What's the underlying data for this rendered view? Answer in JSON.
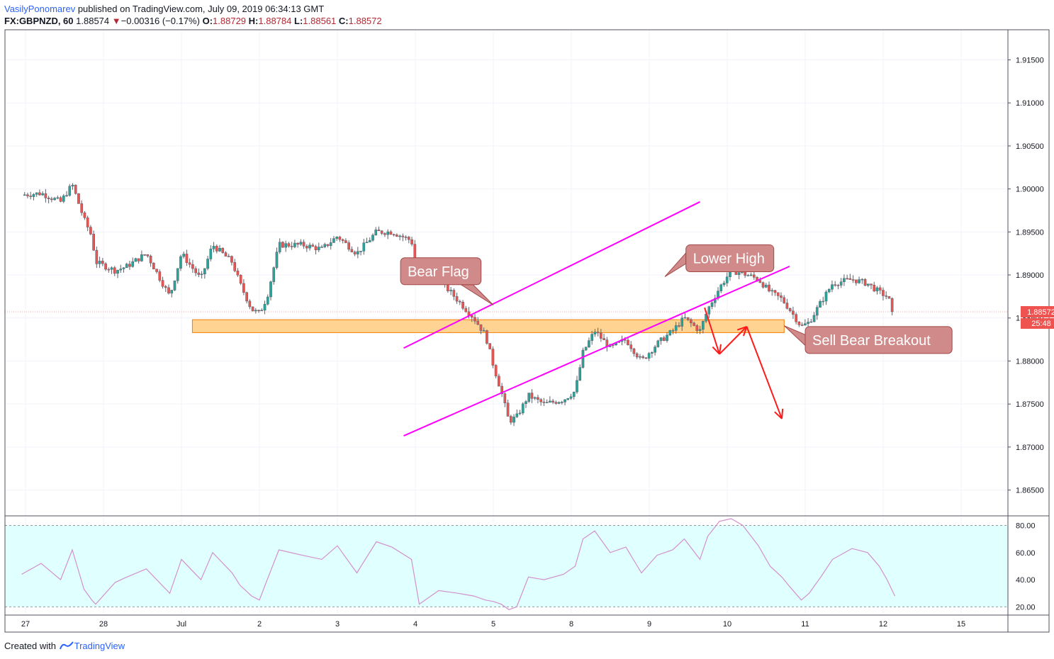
{
  "header": {
    "author": "VasilyPonomarev",
    "published": "published on TradingView.com, July 09, 2019 06:34:13 GMT",
    "symbol": "FX:GBPNZD, 60",
    "last": "1.88574",
    "change": "−0.00316 (−0.17%)",
    "open_label": "O:",
    "open": "1.88729",
    "high_label": "H:",
    "high": "1.88784",
    "low_label": "L:",
    "low": "1.88561",
    "close_label": "C:",
    "close": "1.88572"
  },
  "footer": {
    "created_with": "Created with",
    "brand": "TradingView"
  },
  "colors": {
    "up": "#26a69a",
    "down": "#ef5350",
    "wick": "#5d606b",
    "channel": "#ff00ff",
    "zone": "#ffcc80",
    "zone_border": "#f57c00",
    "callout": "#d08a8a",
    "callout_border": "#a34747",
    "arrow": "#ff1a1a",
    "rsi": "#d38fcb",
    "rsi_band": "#e0ffff",
    "price_tag": "#ef5350"
  },
  "chart_data": [
    {
      "type": "candlestick",
      "title": "FX:GBPNZD, 60",
      "ylim": [
        1.862,
        1.9185
      ],
      "y_ticks": [
        "1.91500",
        "1.91000",
        "1.90500",
        "1.90000",
        "1.89500",
        "1.89000",
        "1.88500",
        "1.88000",
        "1.87500",
        "1.87000",
        "1.86500"
      ],
      "y_tick_values": [
        1.915,
        1.91,
        1.905,
        1.9,
        1.895,
        1.89,
        1.885,
        1.88,
        1.875,
        1.87,
        1.865
      ],
      "x_ticks": [
        "27",
        "28",
        "Jul",
        "2",
        "3",
        "4",
        "5",
        "8",
        "9",
        "10",
        "11",
        "12",
        "15"
      ],
      "x_tick_days": [
        0.05,
        1.05,
        2.05,
        3.05,
        4.05,
        5.05,
        6.05,
        7.05,
        8.05,
        9.05,
        10.05,
        11.05,
        12.05
      ],
      "x_axis_note": "x values are trading-day index (0 = Jun 27, each unit = one trading day on the time axis)",
      "price_tag": "1.88572",
      "countdown": "25:48",
      "last_price": 1.88572,
      "anchors": [
        [
          0.0,
          1.8993
        ],
        [
          0.25,
          1.8995
        ],
        [
          0.5,
          1.8985
        ],
        [
          0.65,
          1.9005
        ],
        [
          0.8,
          1.8965
        ],
        [
          0.9,
          1.8945
        ],
        [
          0.95,
          1.8915
        ],
        [
          1.2,
          1.8905
        ],
        [
          1.35,
          1.891
        ],
        [
          1.6,
          1.8925
        ],
        [
          1.9,
          1.8875
        ],
        [
          2.05,
          1.8925
        ],
        [
          2.3,
          1.8895
        ],
        [
          2.45,
          1.8935
        ],
        [
          2.7,
          1.8915
        ],
        [
          2.8,
          1.889
        ],
        [
          2.95,
          1.886
        ],
        [
          3.05,
          1.8855
        ],
        [
          3.15,
          1.8875
        ],
        [
          3.3,
          1.8935
        ],
        [
          3.6,
          1.8935
        ],
        [
          3.85,
          1.893
        ],
        [
          4.05,
          1.8945
        ],
        [
          4.3,
          1.8925
        ],
        [
          4.55,
          1.895
        ],
        [
          4.75,
          1.895
        ],
        [
          5.0,
          1.894
        ],
        [
          5.1,
          1.889
        ],
        [
          5.35,
          1.8895
        ],
        [
          5.6,
          1.887
        ],
        [
          5.8,
          1.885
        ],
        [
          5.95,
          1.883
        ],
        [
          6.05,
          1.8795
        ],
        [
          6.15,
          1.8765
        ],
        [
          6.25,
          1.873
        ],
        [
          6.35,
          1.8735
        ],
        [
          6.5,
          1.876
        ],
        [
          6.7,
          1.875
        ],
        [
          6.95,
          1.8755
        ],
        [
          7.1,
          1.8765
        ],
        [
          7.2,
          1.881
        ],
        [
          7.35,
          1.8835
        ],
        [
          7.55,
          1.8815
        ],
        [
          7.75,
          1.8825
        ],
        [
          7.95,
          1.88
        ],
        [
          8.15,
          1.882
        ],
        [
          8.35,
          1.8835
        ],
        [
          8.5,
          1.885
        ],
        [
          8.7,
          1.8835
        ],
        [
          8.8,
          1.886
        ],
        [
          8.95,
          1.8885
        ],
        [
          9.1,
          1.8905
        ],
        [
          9.25,
          1.8902
        ],
        [
          9.45,
          1.8895
        ],
        [
          9.6,
          1.888
        ],
        [
          9.75,
          1.8872
        ],
        [
          9.85,
          1.886
        ],
        [
          10.0,
          1.884
        ],
        [
          10.1,
          1.8845
        ],
        [
          10.25,
          1.8868
        ],
        [
          10.4,
          1.889
        ],
        [
          10.65,
          1.8895
        ],
        [
          10.85,
          1.889
        ],
        [
          11.0,
          1.888
        ],
        [
          11.1,
          1.8875
        ],
        [
          11.2,
          1.8857
        ]
      ]
    },
    {
      "type": "line",
      "name": "RSI",
      "ylim": [
        15,
        86
      ],
      "y_ticks": [
        "80.00",
        "60.00",
        "40.00",
        "20.00"
      ],
      "y_tick_values": [
        80,
        60,
        40,
        20
      ],
      "band": [
        20,
        80
      ],
      "points": [
        [
          0.0,
          44
        ],
        [
          0.25,
          52
        ],
        [
          0.5,
          40
        ],
        [
          0.65,
          62
        ],
        [
          0.8,
          33
        ],
        [
          0.9,
          25
        ],
        [
          0.95,
          22
        ],
        [
          1.2,
          38
        ],
        [
          1.35,
          42
        ],
        [
          1.6,
          48
        ],
        [
          1.9,
          30
        ],
        [
          2.05,
          55
        ],
        [
          2.3,
          40
        ],
        [
          2.45,
          60
        ],
        [
          2.7,
          45
        ],
        [
          2.8,
          36
        ],
        [
          2.95,
          28
        ],
        [
          3.05,
          25
        ],
        [
          3.15,
          40
        ],
        [
          3.3,
          62
        ],
        [
          3.6,
          58
        ],
        [
          3.85,
          55
        ],
        [
          4.05,
          65
        ],
        [
          4.3,
          45
        ],
        [
          4.55,
          68
        ],
        [
          4.75,
          64
        ],
        [
          5.0,
          55
        ],
        [
          5.1,
          22
        ],
        [
          5.35,
          32
        ],
        [
          5.6,
          30
        ],
        [
          5.8,
          28
        ],
        [
          5.95,
          25
        ],
        [
          6.05,
          24
        ],
        [
          6.15,
          22
        ],
        [
          6.25,
          18
        ],
        [
          6.35,
          20
        ],
        [
          6.5,
          42
        ],
        [
          6.7,
          40
        ],
        [
          6.95,
          44
        ],
        [
          7.1,
          50
        ],
        [
          7.2,
          70
        ],
        [
          7.35,
          76
        ],
        [
          7.55,
          60
        ],
        [
          7.75,
          64
        ],
        [
          7.95,
          45
        ],
        [
          8.15,
          58
        ],
        [
          8.35,
          62
        ],
        [
          8.5,
          70
        ],
        [
          8.7,
          55
        ],
        [
          8.8,
          72
        ],
        [
          8.95,
          83
        ],
        [
          9.1,
          85
        ],
        [
          9.25,
          80
        ],
        [
          9.45,
          65
        ],
        [
          9.6,
          50
        ],
        [
          9.75,
          42
        ],
        [
          9.85,
          35
        ],
        [
          10.0,
          25
        ],
        [
          10.1,
          30
        ],
        [
          10.25,
          42
        ],
        [
          10.4,
          55
        ],
        [
          10.65,
          63
        ],
        [
          10.85,
          60
        ],
        [
          11.0,
          50
        ],
        [
          11.1,
          40
        ],
        [
          11.2,
          28
        ]
      ]
    }
  ],
  "drawings": {
    "zone": {
      "label": "",
      "x_start": 2.19,
      "x_end": 9.78,
      "y_low": 1.8833,
      "y_high": 1.8848
    },
    "channel_upper": [
      [
        4.9,
        1.8815
      ],
      [
        8.7,
        1.8985
      ]
    ],
    "channel_lower": [
      [
        4.9,
        1.8713
      ],
      [
        9.85,
        1.891
      ]
    ],
    "arrows": [
      [
        [
          8.76,
          1.8862
        ],
        [
          8.95,
          1.8808
        ]
      ],
      [
        [
          8.95,
          1.8808
        ],
        [
          9.3,
          1.884
        ]
      ],
      [
        [
          9.3,
          1.884
        ],
        [
          9.75,
          1.8733
        ]
      ]
    ],
    "callouts": [
      {
        "text": "Bear Flag",
        "box": [
          4.86,
          1.892
        ],
        "tip": [
          6.05,
          1.8865
        ]
      },
      {
        "text": "Lower High",
        "box": [
          8.52,
          1.8935
        ],
        "tip": [
          8.25,
          1.8898
        ]
      },
      {
        "text": "Sell Bear Breakout",
        "box": [
          10.05,
          1.884
        ],
        "tip": [
          9.78,
          1.8841
        ]
      }
    ]
  }
}
